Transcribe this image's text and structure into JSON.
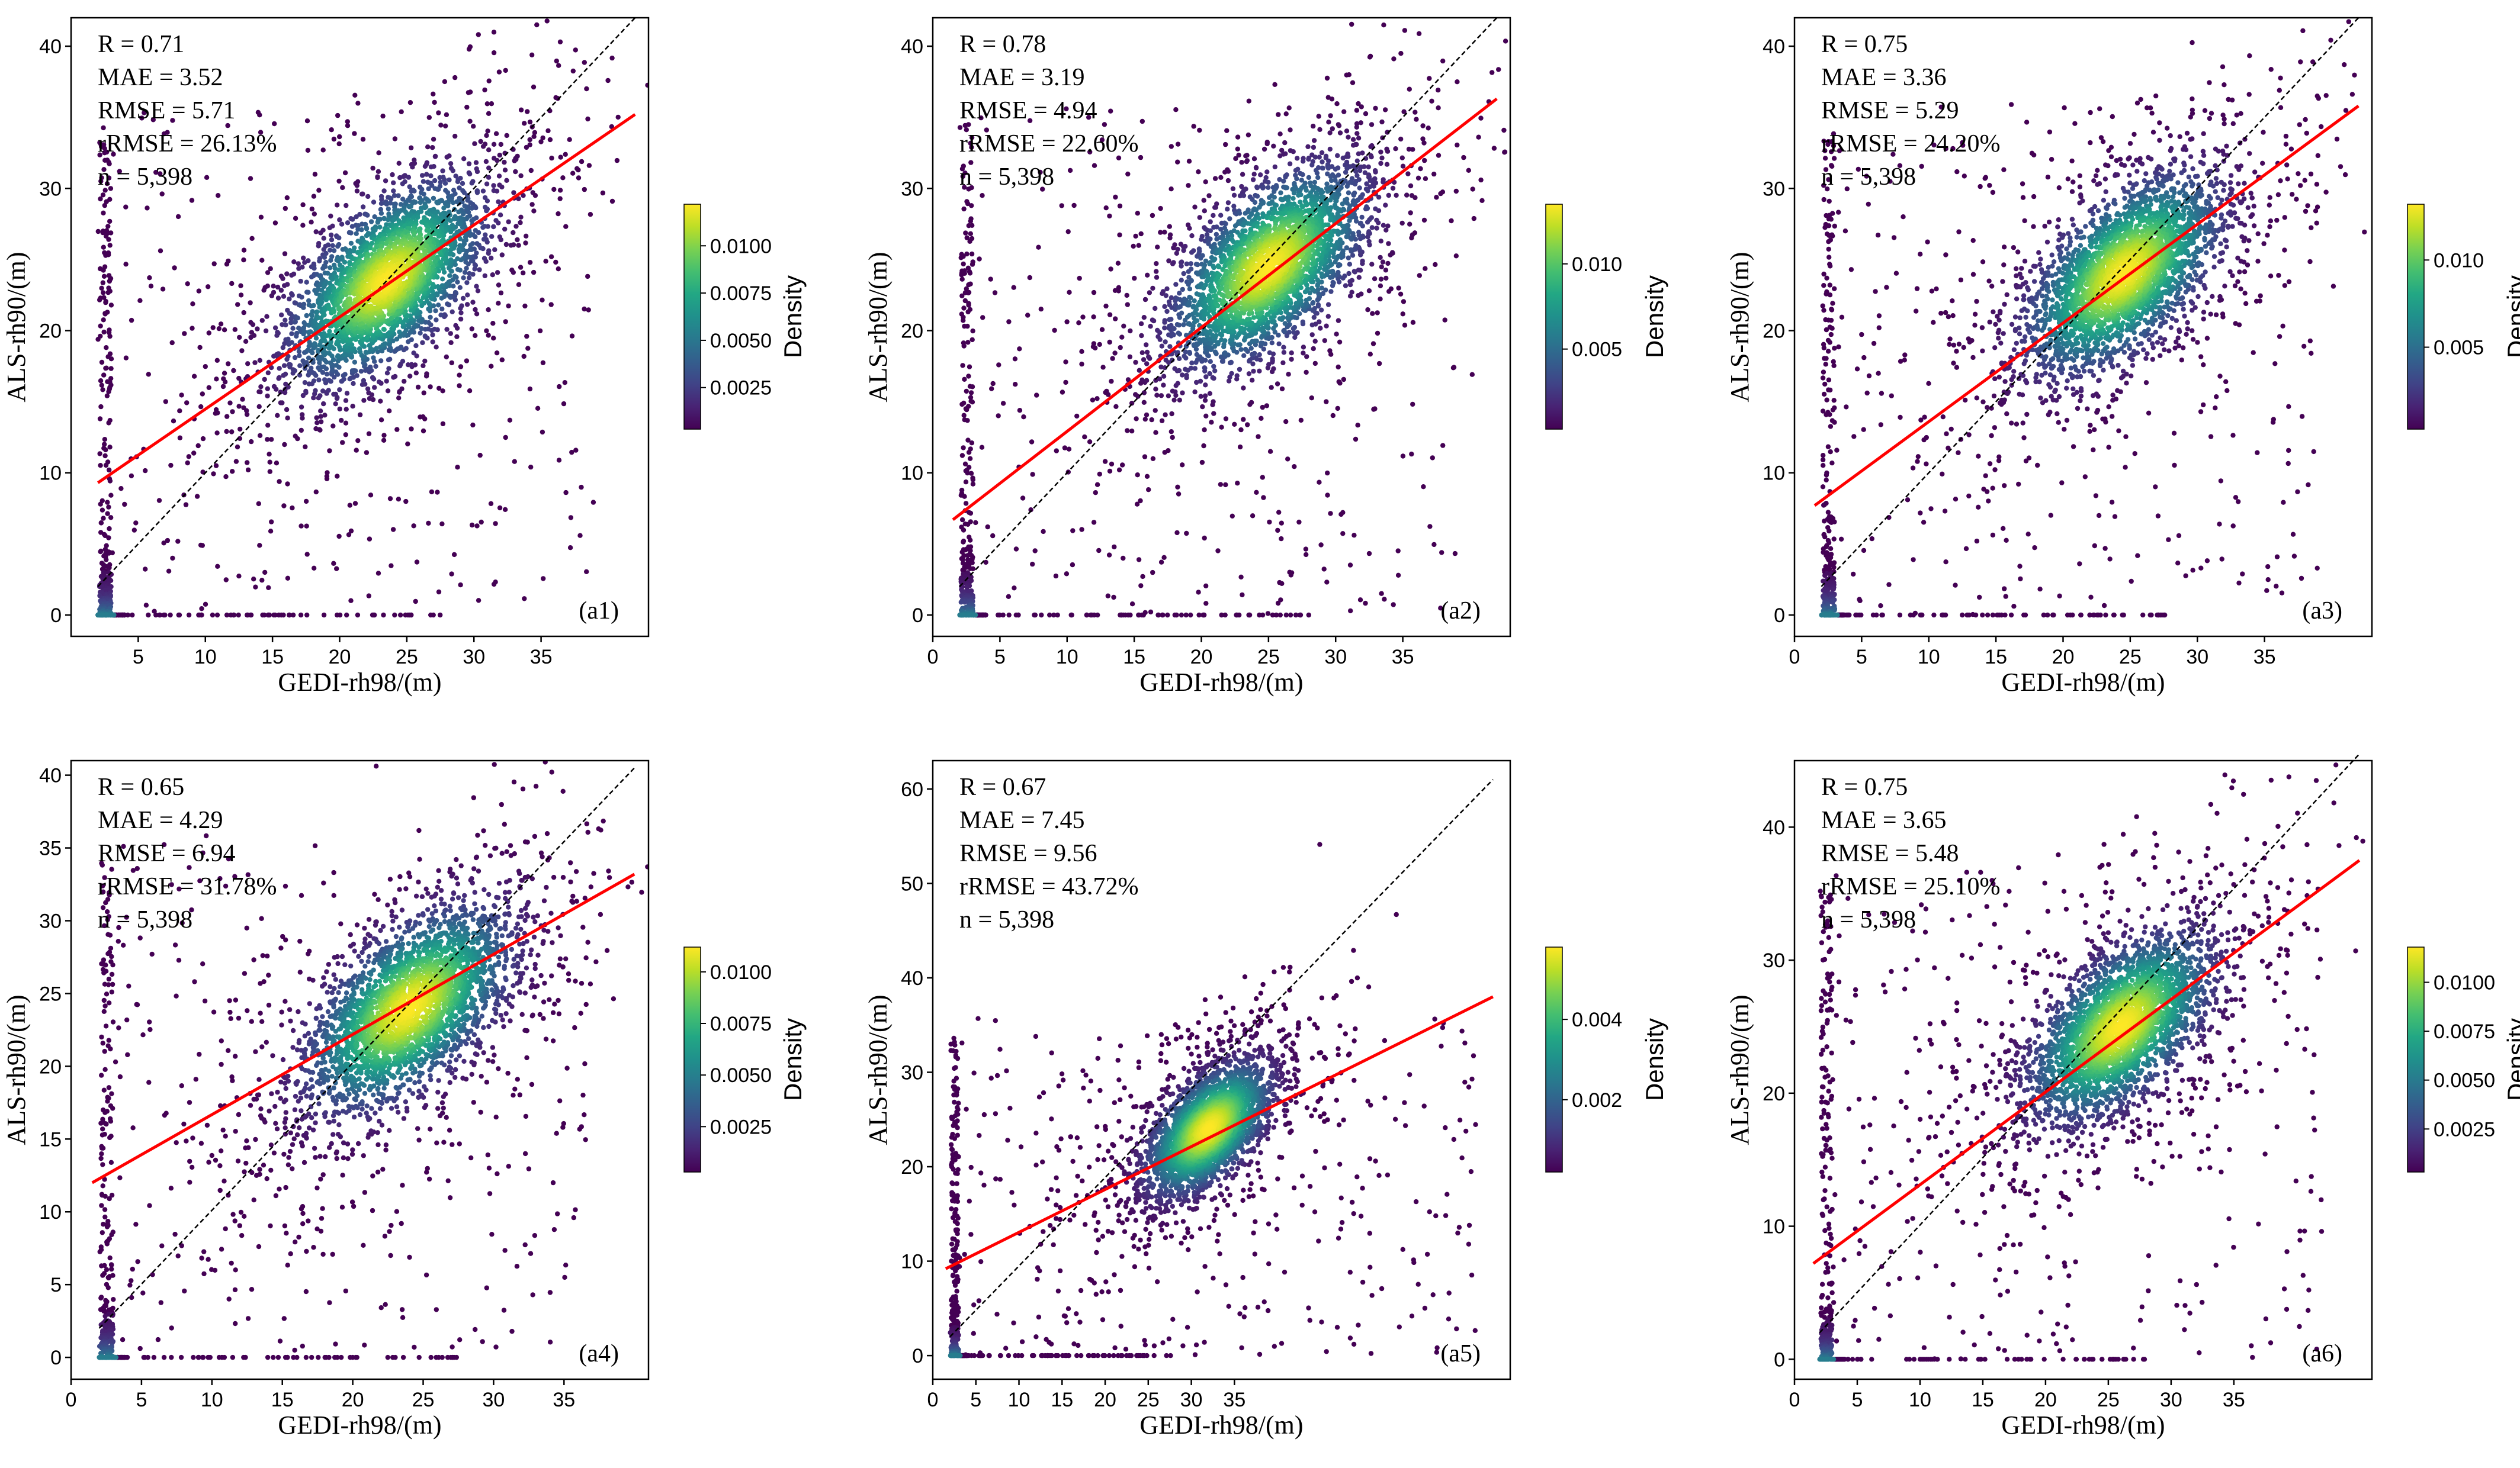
{
  "chart_data": [
    {
      "type": "scatter",
      "panel_label": "(a1)",
      "xlabel": "GEDI-rh98/(m)",
      "ylabel": "ALS-rh90/(m)",
      "xlim": [
        0,
        43
      ],
      "ylim": [
        -1.5,
        42
      ],
      "xticks": [
        5,
        10,
        15,
        20,
        25,
        30,
        35
      ],
      "yticks": [
        0,
        10,
        20,
        30,
        40
      ],
      "stats": [
        "R = 0.71",
        "MAE = 3.52",
        "RMSE = 5.71",
        "rRMSE = 26.13%",
        "n = 5,398"
      ],
      "fit_line": {
        "x": [
          2,
          42
        ],
        "y": [
          9.3,
          35.2
        ],
        "color": "#ff0000"
      },
      "identity_line": {
        "x": [
          2,
          42
        ],
        "y": [
          2,
          42
        ],
        "color": "#000000"
      },
      "center": [
        23.5,
        23.5
      ],
      "colorbar": {
        "label": "Density",
        "min": 0.0003,
        "max": 0.0122,
        "ticks": [
          0.0025,
          0.005,
          0.0075,
          0.01
        ],
        "tick_labels": [
          "0.0025",
          "0.0050",
          "0.0075",
          "0.0100"
        ]
      }
    },
    {
      "type": "scatter",
      "panel_label": "(a2)",
      "xlabel": "GEDI-rh98/(m)",
      "ylabel": "ALS-rh90/(m)",
      "xlim": [
        0,
        43
      ],
      "ylim": [
        -1.5,
        42
      ],
      "xticks": [
        0,
        5,
        10,
        15,
        20,
        25,
        30,
        35
      ],
      "yticks": [
        0,
        10,
        20,
        30,
        40
      ],
      "stats": [
        "R = 0.78",
        "MAE = 3.19",
        "RMSE = 4.94",
        "rRMSE = 22.60%",
        "n = 5,398"
      ],
      "fit_line": {
        "x": [
          1.5,
          42
        ],
        "y": [
          6.7,
          36.3
        ],
        "color": "#ff0000"
      },
      "identity_line": {
        "x": [
          2,
          42
        ],
        "y": [
          2,
          42
        ],
        "color": "#000000"
      },
      "center": [
        25,
        24.5
      ],
      "colorbar": {
        "label": "Density",
        "min": 0.0003,
        "max": 0.0135,
        "ticks": [
          0.005,
          0.01
        ],
        "tick_labels": [
          "0.005",
          "0.010"
        ]
      }
    },
    {
      "type": "scatter",
      "panel_label": "(a3)",
      "xlabel": "GEDI-rh98/(m)",
      "ylabel": "ALS-rh90/(m)",
      "xlim": [
        0,
        43
      ],
      "ylim": [
        -1.5,
        42
      ],
      "xticks": [
        0,
        5,
        10,
        15,
        20,
        25,
        30,
        35
      ],
      "yticks": [
        0,
        10,
        20,
        30,
        40
      ],
      "stats": [
        "R = 0.75",
        "MAE = 3.36",
        "RMSE = 5.29",
        "rRMSE = 24.20%",
        "n = 5,398"
      ],
      "fit_line": {
        "x": [
          1.5,
          42
        ],
        "y": [
          7.7,
          35.8
        ],
        "color": "#ff0000"
      },
      "identity_line": {
        "x": [
          2,
          42
        ],
        "y": [
          2,
          42
        ],
        "color": "#000000"
      },
      "center": [
        24.5,
        24
      ],
      "colorbar": {
        "label": "Density",
        "min": 0.0003,
        "max": 0.0132,
        "ticks": [
          0.005,
          0.01
        ],
        "tick_labels": [
          "0.005",
          "0.010"
        ]
      }
    },
    {
      "type": "scatter",
      "panel_label": "(a4)",
      "xlabel": "GEDI-rh98/(m)",
      "ylabel": "ALS-rh90/(m)",
      "xlim": [
        0,
        41
      ],
      "ylim": [
        -1.5,
        41
      ],
      "xticks": [
        0,
        5,
        10,
        15,
        20,
        25,
        30,
        35
      ],
      "yticks": [
        0,
        5,
        10,
        15,
        20,
        25,
        30,
        35,
        40
      ],
      "stats": [
        "R = 0.65",
        "MAE = 4.29",
        "RMSE = 6.94",
        "rRMSE = 31.78%",
        "n = 5,398"
      ],
      "fit_line": {
        "x": [
          1.5,
          40
        ],
        "y": [
          12.0,
          33.2
        ],
        "color": "#ff0000"
      },
      "identity_line": {
        "x": [
          2,
          40
        ],
        "y": [
          2,
          40.5
        ],
        "color": "#000000"
      },
      "center": [
        24,
        24
      ],
      "colorbar": {
        "label": "Density",
        "min": 0.0003,
        "max": 0.0112,
        "ticks": [
          0.0025,
          0.005,
          0.0075,
          0.01
        ],
        "tick_labels": [
          "0.0025",
          "0.0050",
          "0.0075",
          "0.0100"
        ]
      }
    },
    {
      "type": "scatter",
      "panel_label": "(a5)",
      "xlabel": "GEDI-rh98/(m)",
      "ylabel": "ALS-rh90/(m)",
      "xlim": [
        0,
        67
      ],
      "ylim": [
        -2.5,
        63
      ],
      "xticks": [
        0,
        5,
        10,
        15,
        20,
        25,
        30,
        35
      ],
      "yticks": [
        0,
        10,
        20,
        30,
        40,
        50,
        60
      ],
      "stats": [
        "R = 0.67",
        "MAE = 7.45",
        "RMSE = 9.56",
        "rRMSE = 43.72%",
        "n = 5,398"
      ],
      "fit_line": {
        "x": [
          1.5,
          65
        ],
        "y": [
          9.2,
          38.0
        ],
        "color": "#ff0000"
      },
      "identity_line": {
        "x": [
          2,
          65
        ],
        "y": [
          2,
          61
        ],
        "color": "#000000"
      },
      "center": [
        32,
        24
      ],
      "colorbar": {
        "label": "Density",
        "min": 0.0002,
        "max": 0.0058,
        "ticks": [
          0.002,
          0.004
        ],
        "tick_labels": [
          "0.002",
          "0.004"
        ]
      }
    },
    {
      "type": "scatter",
      "panel_label": "(a6)",
      "xlabel": "GEDI-rh98/(m)",
      "ylabel": "ALS-rh90/(m)",
      "xlim": [
        0,
        46
      ],
      "ylim": [
        -1.5,
        45
      ],
      "xticks": [
        0,
        5,
        10,
        15,
        20,
        25,
        30,
        35
      ],
      "yticks": [
        0,
        10,
        20,
        30,
        40
      ],
      "stats": [
        "R = 0.75",
        "MAE = 3.65",
        "RMSE = 5.48",
        "rRMSE = 25.10%",
        "n = 5,398"
      ],
      "fit_line": {
        "x": [
          1.5,
          45
        ],
        "y": [
          7.2,
          37.5
        ],
        "color": "#ff0000"
      },
      "identity_line": {
        "x": [
          2,
          45
        ],
        "y": [
          2,
          45.5
        ],
        "color": "#000000"
      },
      "center": [
        26,
        25
      ],
      "colorbar": {
        "label": "Density",
        "min": 0.0003,
        "max": 0.0118,
        "ticks": [
          0.0025,
          0.005,
          0.0075,
          0.01
        ],
        "tick_labels": [
          "0.0025",
          "0.0050",
          "0.0075",
          "0.0100"
        ]
      }
    }
  ]
}
